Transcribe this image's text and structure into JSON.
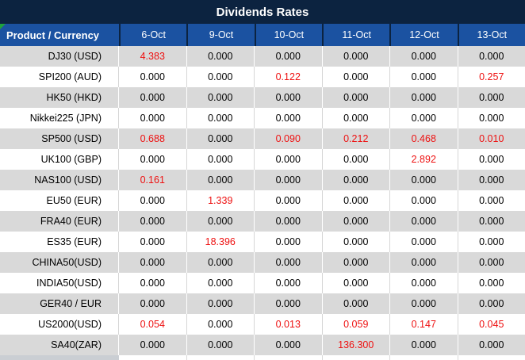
{
  "title": "Dividends Rates",
  "colors": {
    "title_bg": "#0c2340",
    "header_bg": "#1b52a1",
    "row_alt_bg": "#d9d9d9",
    "highlight_text": "#ee1111",
    "corner_indicator": "#1fa23c"
  },
  "icons": {
    "corner_indicator": "green-corner-indicator"
  },
  "table": {
    "header": [
      "Product / Currency",
      "6-Oct",
      "9-Oct",
      "10-Oct",
      "11-Oct",
      "12-Oct",
      "13-Oct"
    ],
    "rows": [
      {
        "product": "DJ30 (USD)",
        "cells": [
          {
            "text": "4.383",
            "red": true
          },
          {
            "text": "0.000"
          },
          {
            "text": "0.000"
          },
          {
            "text": "0.000"
          },
          {
            "text": "0.000"
          },
          {
            "text": "0.000"
          }
        ]
      },
      {
        "product": "SPI200 (AUD)",
        "cells": [
          {
            "text": "0.000"
          },
          {
            "text": "0.000"
          },
          {
            "text": "0.122",
            "red": true
          },
          {
            "text": "0.000"
          },
          {
            "text": "0.000"
          },
          {
            "text": "0.257",
            "red": true
          }
        ]
      },
      {
        "product": "HK50 (HKD)",
        "cells": [
          {
            "text": "0.000"
          },
          {
            "text": "0.000"
          },
          {
            "text": "0.000"
          },
          {
            "text": "0.000"
          },
          {
            "text": "0.000"
          },
          {
            "text": "0.000"
          }
        ]
      },
      {
        "product": "Nikkei225 (JPN)",
        "cells": [
          {
            "text": "0.000"
          },
          {
            "text": "0.000"
          },
          {
            "text": "0.000"
          },
          {
            "text": "0.000"
          },
          {
            "text": "0.000"
          },
          {
            "text": "0.000"
          }
        ]
      },
      {
        "product": "SP500 (USD)",
        "cells": [
          {
            "text": "0.688",
            "red": true
          },
          {
            "text": "0.000"
          },
          {
            "text": "0.090",
            "red": true
          },
          {
            "text": "0.212",
            "red": true
          },
          {
            "text": "0.468",
            "red": true
          },
          {
            "text": "0.010",
            "red": true
          }
        ]
      },
      {
        "product": "UK100 (GBP)",
        "cells": [
          {
            "text": "0.000"
          },
          {
            "text": "0.000"
          },
          {
            "text": "0.000"
          },
          {
            "text": "0.000"
          },
          {
            "text": "2.892",
            "red": true
          },
          {
            "text": "0.000"
          }
        ]
      },
      {
        "product": "NAS100 (USD)",
        "cells": [
          {
            "text": "0.161",
            "red": true
          },
          {
            "text": "0.000"
          },
          {
            "text": "0.000"
          },
          {
            "text": "0.000"
          },
          {
            "text": "0.000"
          },
          {
            "text": "0.000"
          }
        ]
      },
      {
        "product": "EU50 (EUR)",
        "cells": [
          {
            "text": "0.000"
          },
          {
            "text": "1.339",
            "red": true
          },
          {
            "text": "0.000"
          },
          {
            "text": "0.000"
          },
          {
            "text": "0.000"
          },
          {
            "text": "0.000"
          }
        ]
      },
      {
        "product": "FRA40 (EUR)",
        "cells": [
          {
            "text": "0.000"
          },
          {
            "text": "0.000"
          },
          {
            "text": "0.000"
          },
          {
            "text": "0.000"
          },
          {
            "text": "0.000"
          },
          {
            "text": "0.000"
          }
        ]
      },
      {
        "product": "ES35 (EUR)",
        "cells": [
          {
            "text": "0.000"
          },
          {
            "text": "18.396",
            "red": true
          },
          {
            "text": "0.000"
          },
          {
            "text": "0.000"
          },
          {
            "text": "0.000"
          },
          {
            "text": "0.000"
          }
        ]
      },
      {
        "product": "CHINA50(USD)",
        "cells": [
          {
            "text": "0.000"
          },
          {
            "text": "0.000"
          },
          {
            "text": "0.000"
          },
          {
            "text": "0.000"
          },
          {
            "text": "0.000"
          },
          {
            "text": "0.000"
          }
        ]
      },
      {
        "product": "INDIA50(USD)",
        "cells": [
          {
            "text": "0.000"
          },
          {
            "text": "0.000"
          },
          {
            "text": "0.000"
          },
          {
            "text": "0.000"
          },
          {
            "text": "0.000"
          },
          {
            "text": "0.000"
          }
        ]
      },
      {
        "product": "GER40 / EUR",
        "cells": [
          {
            "text": "0.000"
          },
          {
            "text": "0.000"
          },
          {
            "text": "0.000"
          },
          {
            "text": "0.000"
          },
          {
            "text": "0.000"
          },
          {
            "text": "0.000"
          }
        ]
      },
      {
        "product": "US2000(USD)",
        "cells": [
          {
            "text": "0.054",
            "red": true
          },
          {
            "text": "0.000"
          },
          {
            "text": "0.013",
            "red": true
          },
          {
            "text": "0.059",
            "red": true
          },
          {
            "text": "0.147",
            "red": true
          },
          {
            "text": "0.045",
            "red": true
          }
        ]
      },
      {
        "product": "SA40(ZAR)",
        "cells": [
          {
            "text": "0.000"
          },
          {
            "text": "0.000"
          },
          {
            "text": "0.000"
          },
          {
            "text": "136.300",
            "red": true
          },
          {
            "text": "0.000"
          },
          {
            "text": "0.000"
          }
        ]
      }
    ]
  }
}
